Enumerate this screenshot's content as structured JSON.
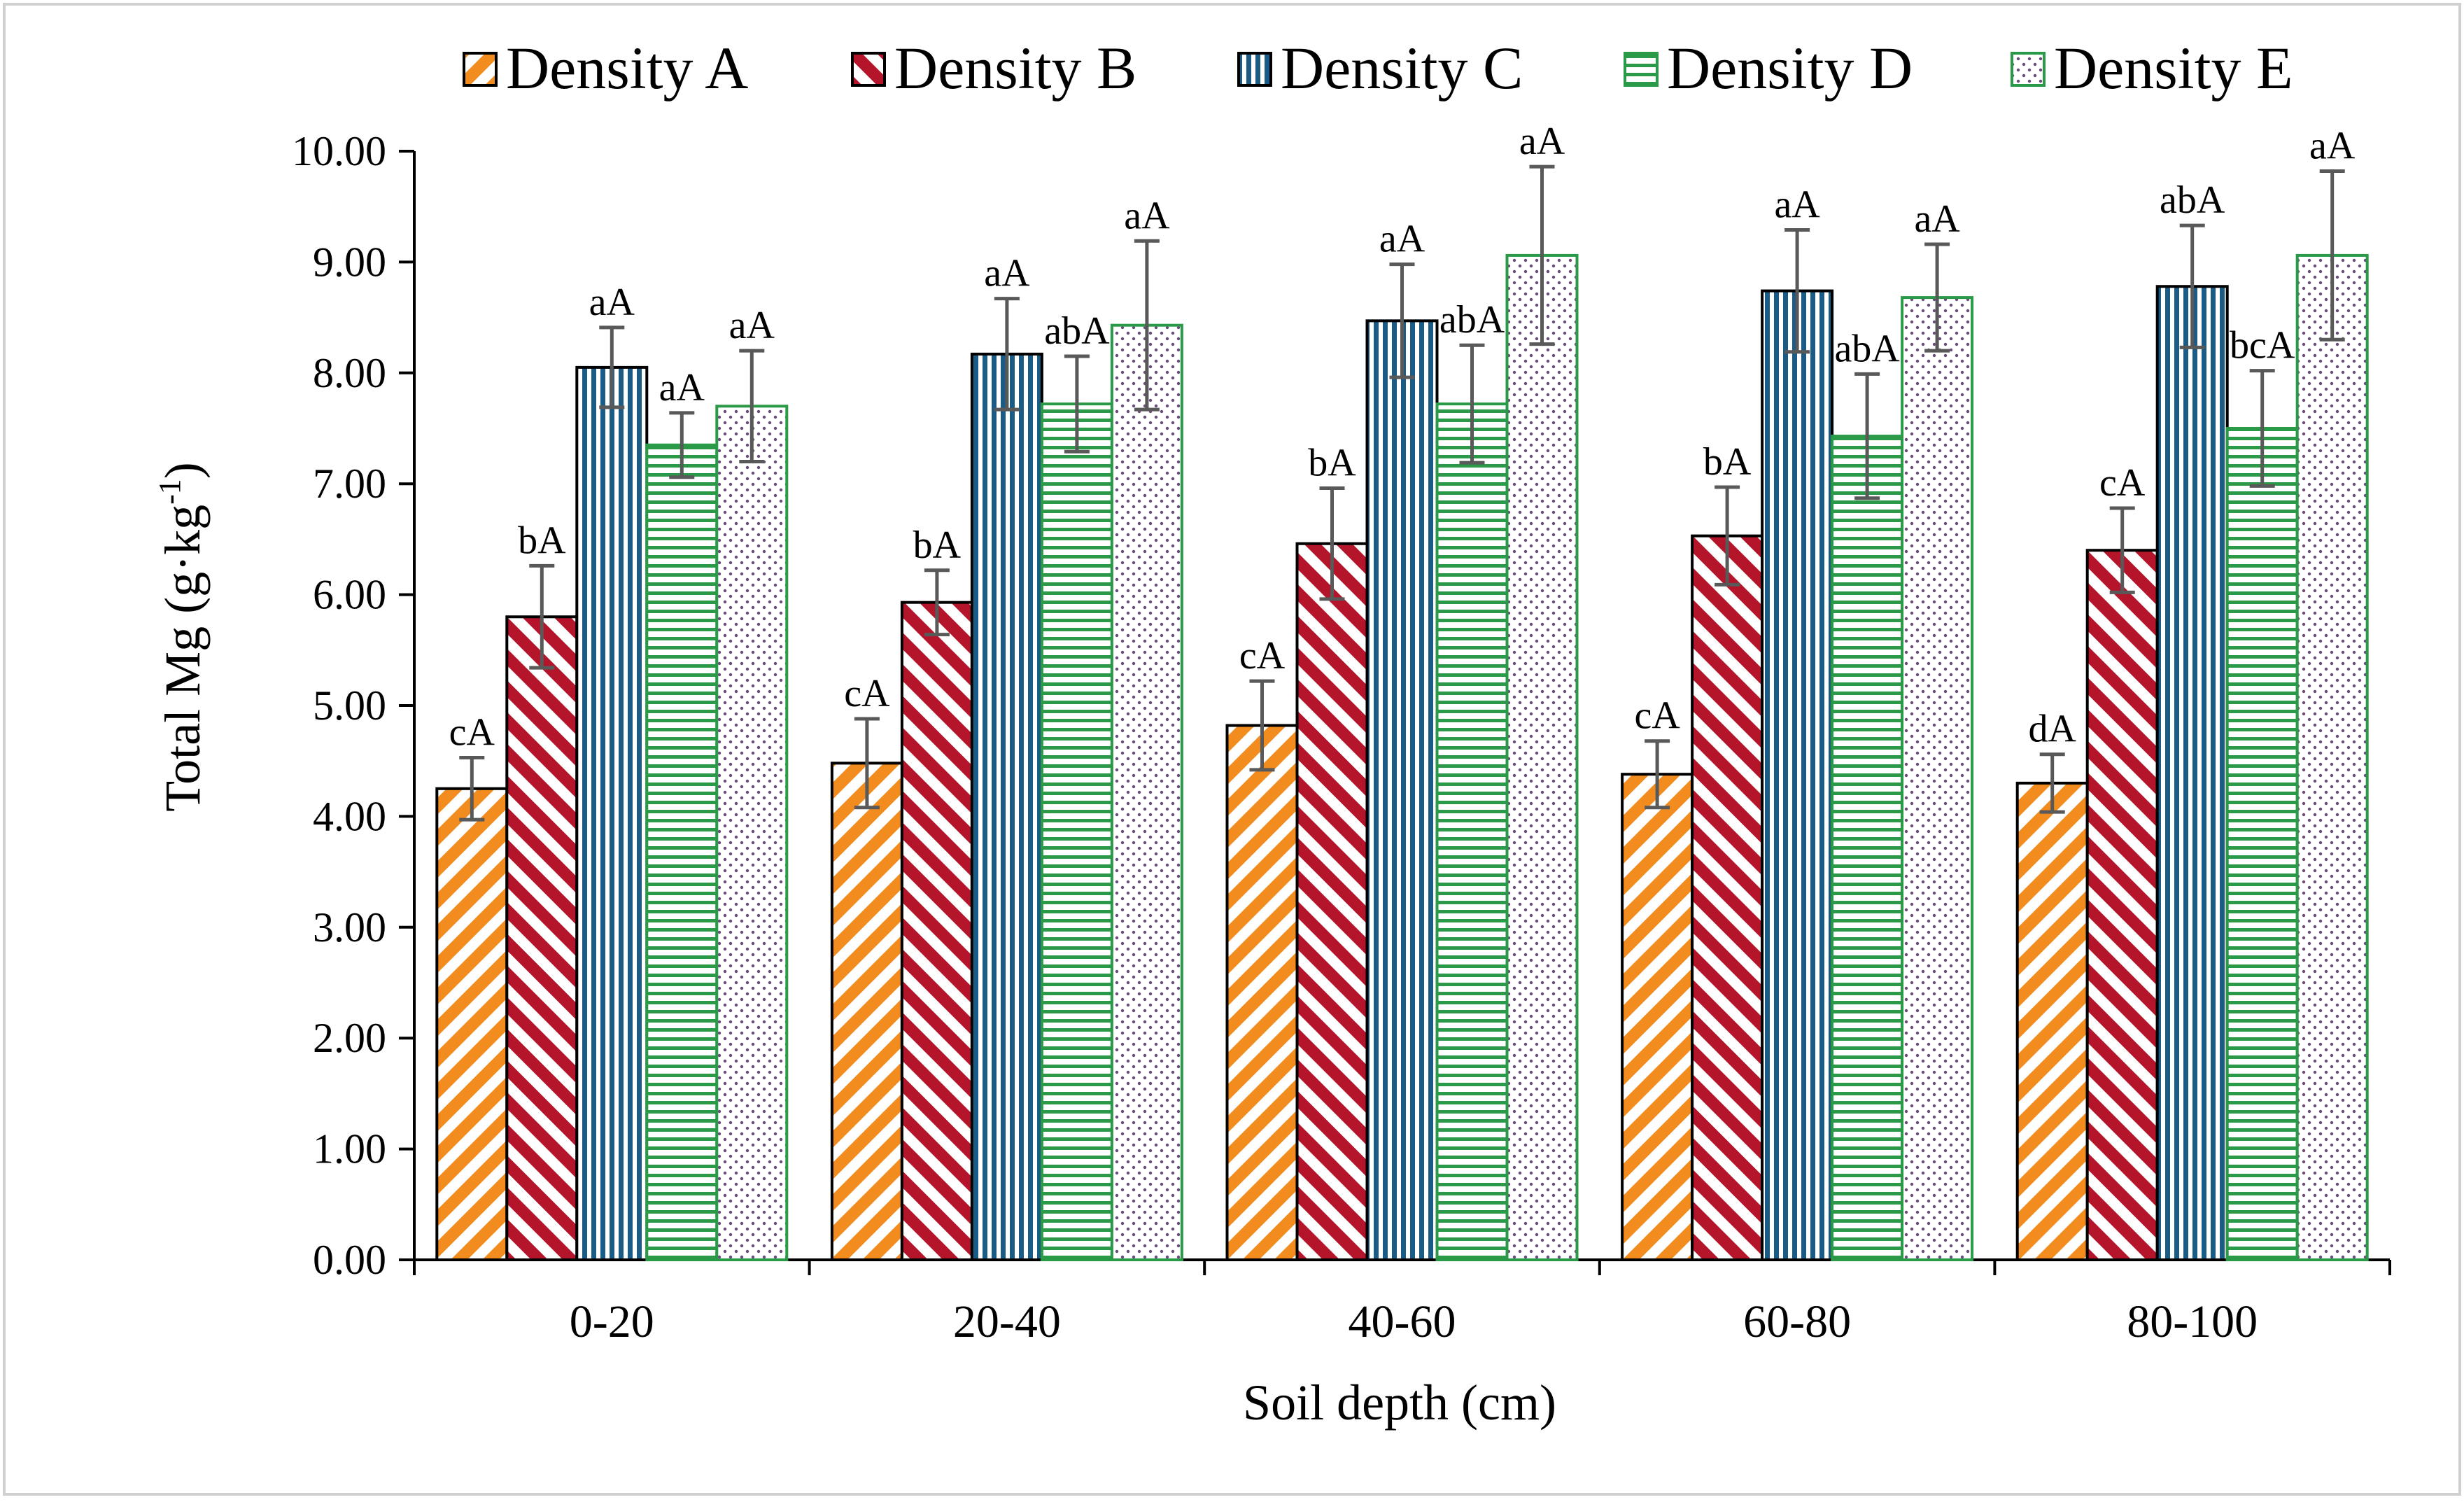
{
  "chart_data": {
    "type": "bar",
    "title": "",
    "xlabel": "Soil depth (cm)",
    "ylabel_main": "Total Mg (g·kg",
    "ylabel_sup": "-1",
    "ylabel_close": ")",
    "ylim": [
      0,
      10
    ],
    "yticks": [
      "0.00",
      "1.00",
      "2.00",
      "3.00",
      "4.00",
      "5.00",
      "6.00",
      "7.00",
      "8.00",
      "9.00",
      "10.00"
    ],
    "categories": [
      "0-20",
      "20-40",
      "40-60",
      "60-80",
      "80-100"
    ],
    "legend_position": "top",
    "series": [
      {
        "name": "Density A",
        "pattern": "diag-a",
        "color": "#F28C1E",
        "edge": "#000000",
        "values": [
          4.25,
          4.48,
          4.82,
          4.38,
          4.3
        ],
        "errors": [
          0.28,
          0.4,
          0.4,
          0.3,
          0.26
        ],
        "labels": [
          "cA",
          "cA",
          "cA",
          "cA",
          "dA"
        ]
      },
      {
        "name": "Density B",
        "pattern": "diag-b",
        "color": "#B5152B",
        "edge": "#000000",
        "values": [
          5.8,
          5.93,
          6.46,
          6.53,
          6.4
        ],
        "errors": [
          0.46,
          0.29,
          0.5,
          0.44,
          0.38
        ],
        "labels": [
          "bA",
          "bA",
          "bA",
          "bA",
          "cA"
        ]
      },
      {
        "name": "Density C",
        "pattern": "vert",
        "color": "#1A5C86",
        "edge": "#000000",
        "values": [
          8.05,
          8.17,
          8.47,
          8.74,
          8.78
        ],
        "errors": [
          0.36,
          0.5,
          0.51,
          0.55,
          0.55
        ],
        "labels": [
          "aA",
          "aA",
          "aA",
          "aA",
          "abA"
        ]
      },
      {
        "name": "Density D",
        "pattern": "horiz",
        "color": "#2B9A48",
        "edge": "#2B9A48",
        "values": [
          7.35,
          7.72,
          7.72,
          7.43,
          7.5
        ],
        "errors": [
          0.29,
          0.43,
          0.53,
          0.56,
          0.52
        ],
        "labels": [
          "aA",
          "abA",
          "abA",
          "abA",
          "bcA"
        ]
      },
      {
        "name": "Density E",
        "pattern": "dots",
        "color": "#6B4A7A",
        "edge": "#2B9A48",
        "values": [
          7.7,
          8.43,
          9.06,
          8.68,
          9.06
        ],
        "errors": [
          0.5,
          0.76,
          0.8,
          0.48,
          0.76
        ],
        "labels": [
          "aA",
          "aA",
          "aA",
          "aA",
          "aA"
        ]
      }
    ],
    "error_bar_color": "#595959"
  }
}
